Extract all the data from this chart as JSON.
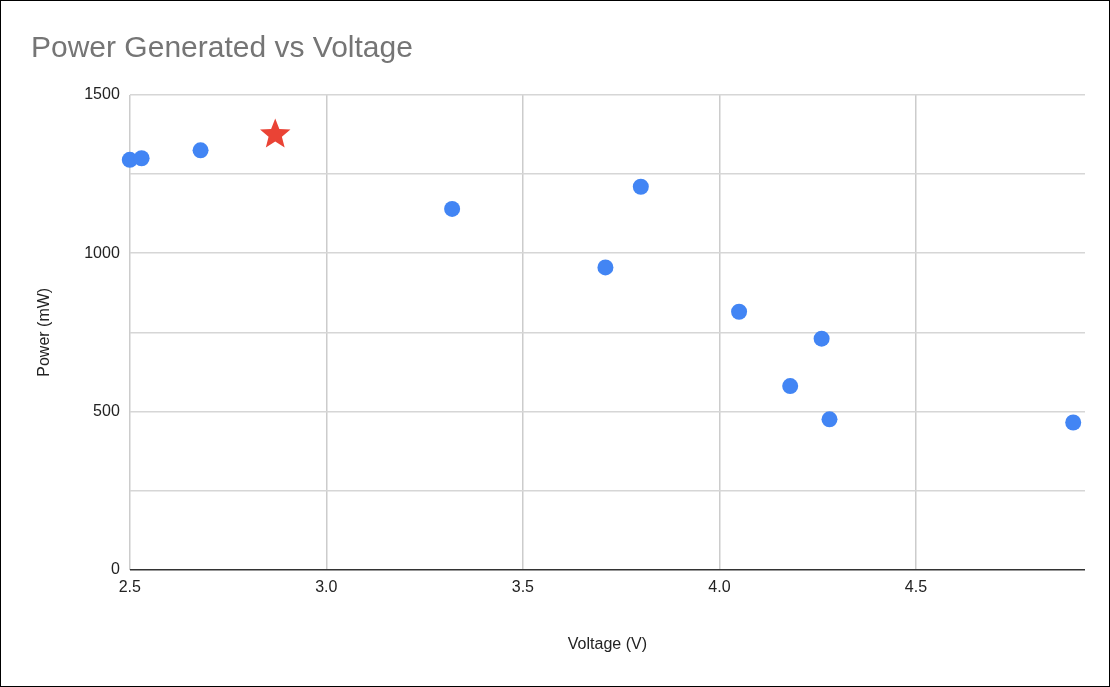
{
  "chart_data": {
    "type": "scatter",
    "title": "Power Generated vs Voltage",
    "xlabel": "Voltage (V)",
    "ylabel": "Power (mW)",
    "xlim": [
      2.5,
      4.93
    ],
    "xticks": [
      2.5,
      {
        "value": 3,
        "label": "3.0"
      },
      3.5,
      {
        "value": 4,
        "label": "4.0"
      },
      4.5
    ],
    "ylim": [
      0,
      1500
    ],
    "yticks": [
      0,
      {
        "value": 250,
        "label": null
      },
      500,
      {
        "value": 750,
        "label": null
      },
      1000,
      {
        "value": 1250,
        "label": null
      },
      1500
    ],
    "grid": true,
    "legend": false,
    "series": [
      {
        "color": "#4285f4",
        "marker": "circle",
        "x": [
          2.5,
          2.53,
          2.68,
          3.32,
          3.71,
          3.8,
          4.05,
          4.26,
          4.18,
          4.28,
          4.9
        ],
        "values": [
          1295,
          1300,
          1325,
          1140,
          955,
          1210,
          815,
          730,
          580,
          475,
          465
        ]
      },
      {
        "color": "#ea4335",
        "marker": "star",
        "x": [
          2.87
        ],
        "values": [
          1375
        ]
      }
    ]
  }
}
